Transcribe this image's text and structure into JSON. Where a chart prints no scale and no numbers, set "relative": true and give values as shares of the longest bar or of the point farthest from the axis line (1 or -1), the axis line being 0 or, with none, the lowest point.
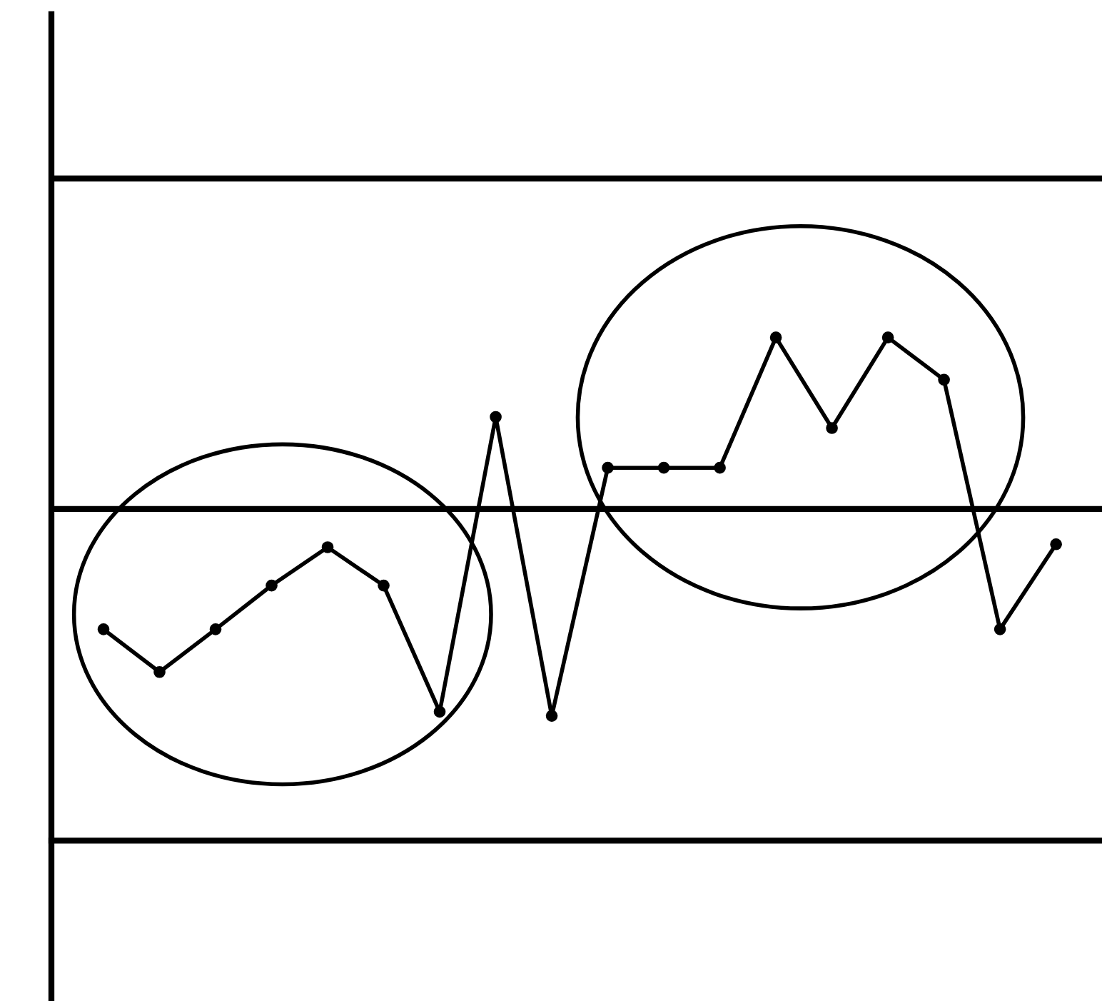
{
  "chart_data": {
    "type": "line",
    "relative": true,
    "categories": [
      null,
      null,
      null,
      null,
      null,
      null,
      null,
      null,
      null,
      null,
      null,
      null,
      null,
      null,
      null,
      null,
      null,
      null
    ],
    "series": [
      {
        "color": "#000000",
        "values": [
          0.42,
          0.335,
          0.42,
          0.507,
          0.583,
          0.507,
          0.256,
          0.842,
          0.248,
          0.741,
          0.741,
          0.741,
          1,
          0.82,
          1,
          0.916,
          0.42,
          0.589
        ]
      }
    ],
    "marker": "circle",
    "line_style": "solid",
    "legend": false,
    "ref_lines": [
      {
        "axis": "y",
        "value": 1.316,
        "color": "#000000"
      },
      {
        "axis": "y",
        "value": 0.659,
        "color": "#000000"
      }
    ]
  }
}
